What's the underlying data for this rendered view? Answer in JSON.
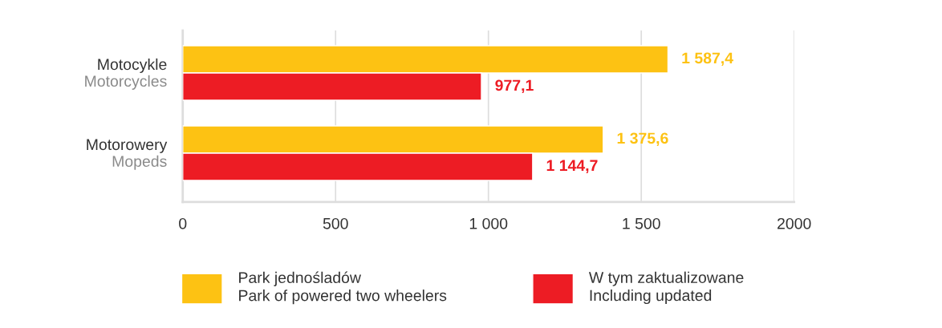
{
  "chart_data": {
    "type": "bar",
    "orientation": "horizontal",
    "categories": [
      "Motocykle\nMotorcycles",
      "Motorowery\nMopeds"
    ],
    "series": [
      {
        "name": "Park jednośladów\nPark of powered two wheelers",
        "color": "#fdc213",
        "values": [
          1587.4,
          1375.6
        ],
        "value_labels": [
          "1 587,4",
          "1 375,6"
        ]
      },
      {
        "name": "W tym zaktualizowane\nIncluding updated",
        "color": "#ed1c24",
        "values": [
          977.1,
          1144.7
        ],
        "value_labels": [
          "977,1",
          "1 144,7"
        ]
      }
    ],
    "xlim": [
      0,
      2000
    ],
    "xticks": [
      0,
      500,
      {
        "value": 1000,
        "label": "1 000"
      },
      {
        "value": 1500,
        "label": "1 500"
      },
      2000
    ],
    "grid": "x",
    "legend": "bottom"
  }
}
